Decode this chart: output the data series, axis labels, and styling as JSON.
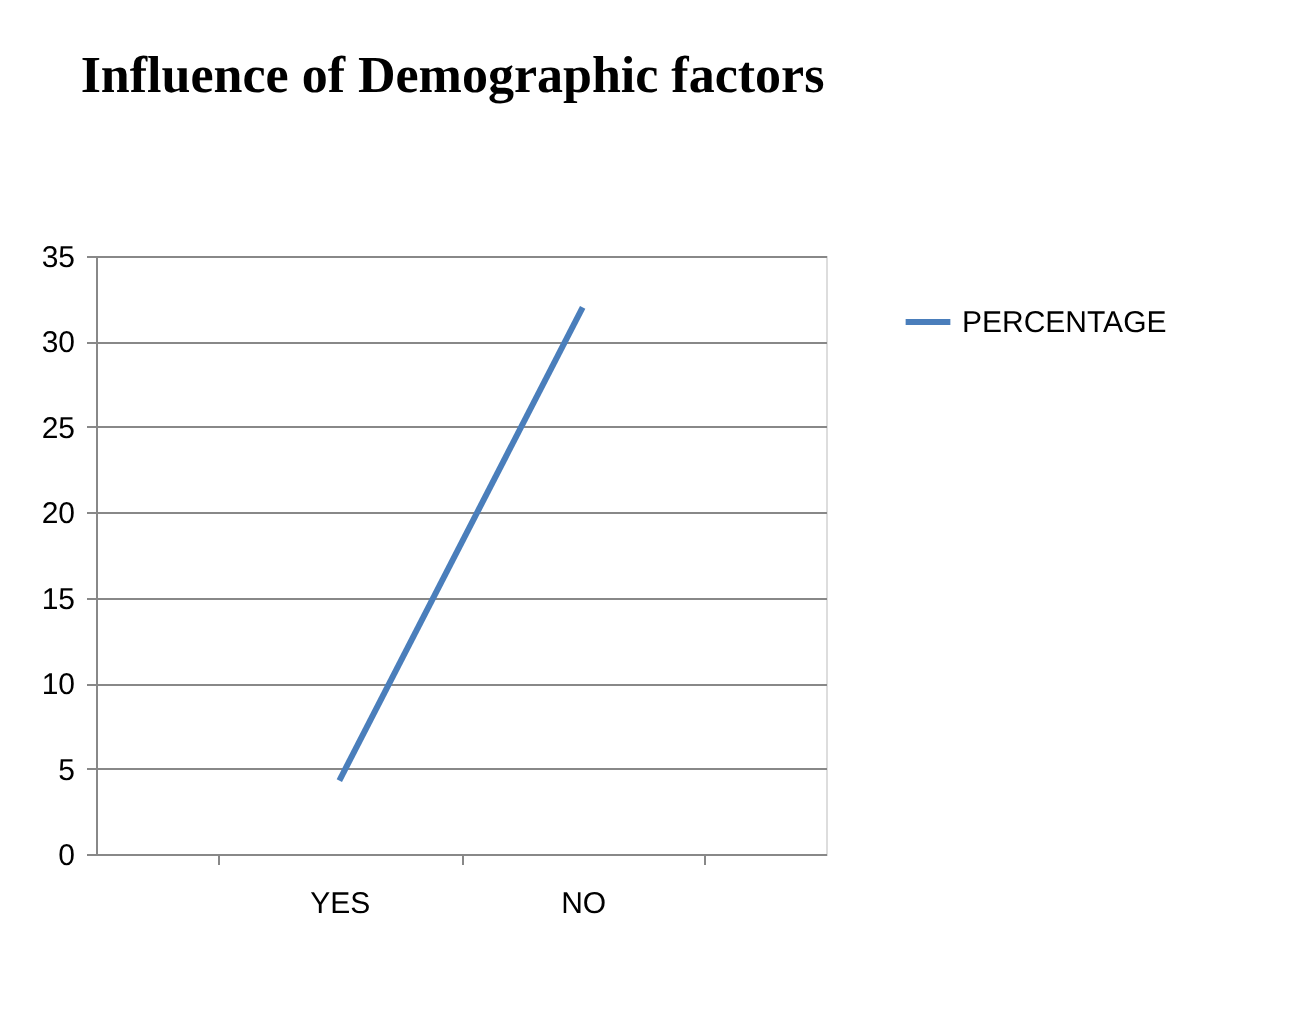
{
  "chart_data": {
    "type": "line",
    "title": "Influence of Demographic  factors",
    "categories": [
      "YES",
      "NO"
    ],
    "series": [
      {
        "name": "PERCENTAGE",
        "color": "#4a7ebb",
        "values": [
          4.3,
          32
        ]
      }
    ],
    "ylim": [
      0,
      35
    ],
    "yticks": [
      0,
      5,
      10,
      15,
      20,
      25,
      30,
      35
    ],
    "grid": "y",
    "legend": "right",
    "marker": "none",
    "line_style": "solid"
  }
}
